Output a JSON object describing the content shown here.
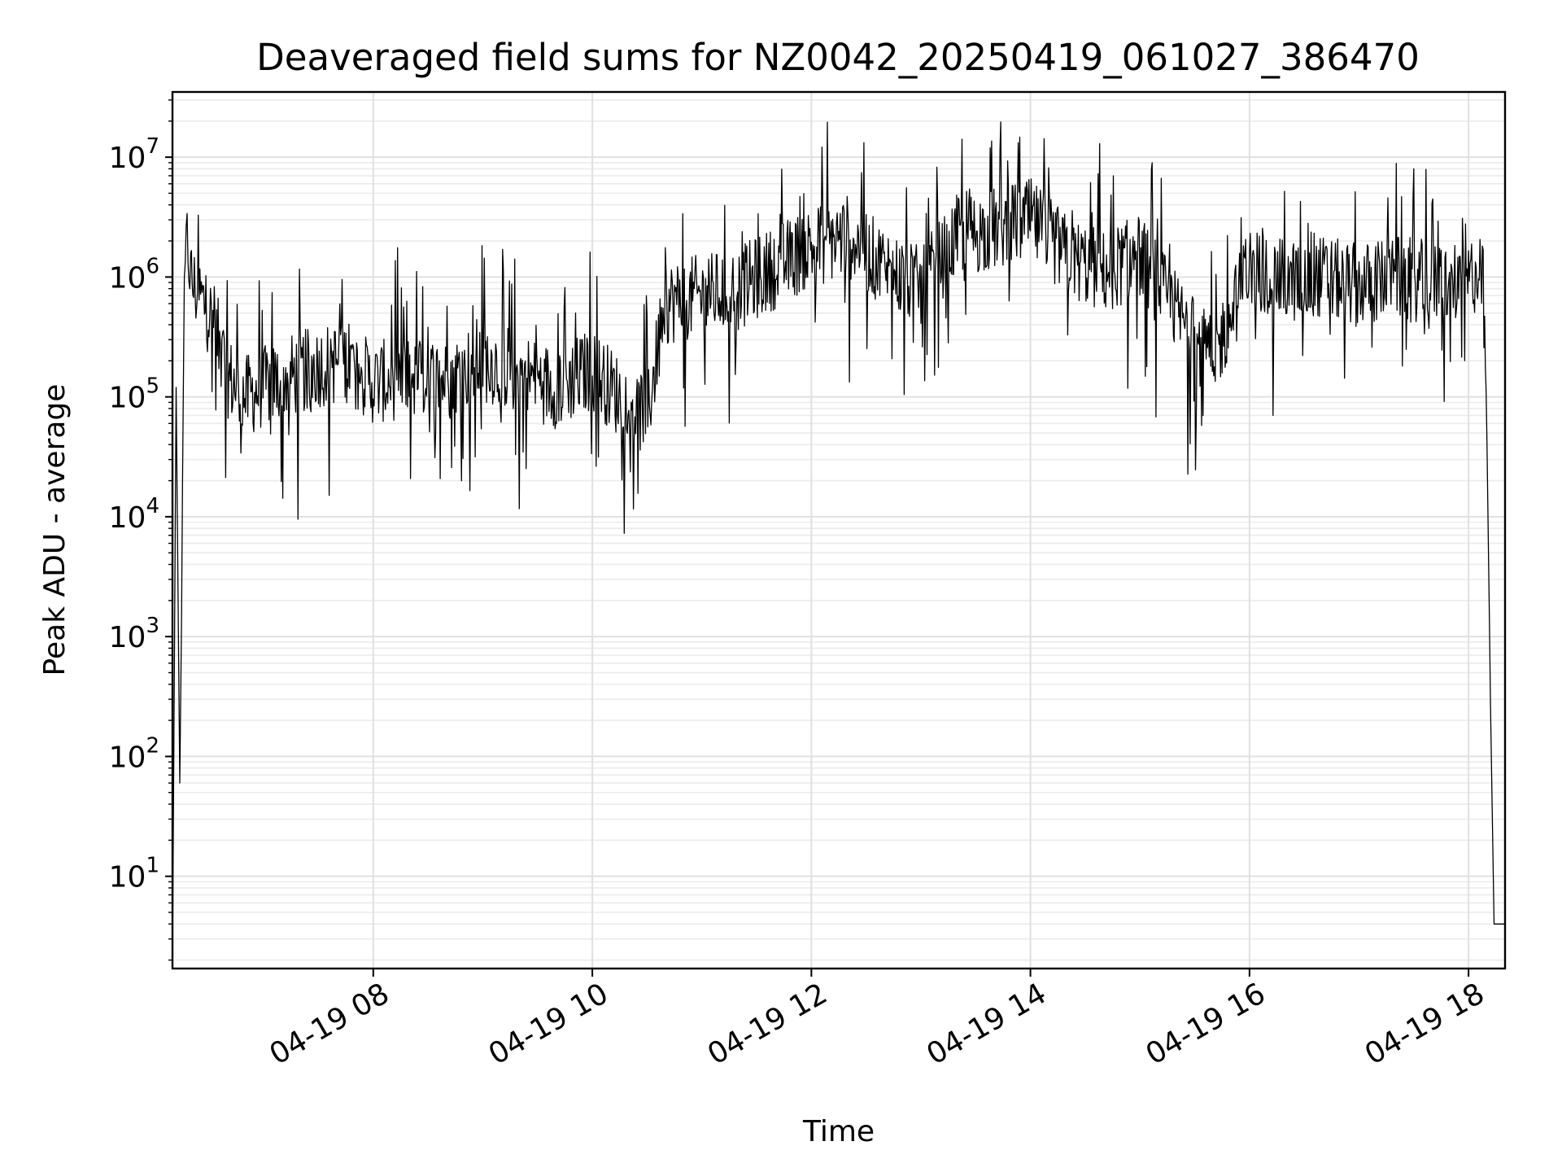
{
  "chart_data": {
    "type": "line",
    "title": "Deaveraged field sums for NZ0042_20250419_061027_386470",
    "xlabel": "Time",
    "ylabel": "Peak ADU - average",
    "yscale": "log",
    "ylim": [
      1.7,
      35000000
    ],
    "xlim": [
      "2025-04-19 06:10",
      "2025-04-19 18:20"
    ],
    "x_ticks": [
      {
        "value": "2025-04-19 08:00",
        "label": "04-19 08"
      },
      {
        "value": "2025-04-19 10:00",
        "label": "04-19 10"
      },
      {
        "value": "2025-04-19 12:00",
        "label": "04-19 12"
      },
      {
        "value": "2025-04-19 14:00",
        "label": "04-19 14"
      },
      {
        "value": "2025-04-19 16:00",
        "label": "04-19 16"
      },
      {
        "value": "2025-04-19 18:00",
        "label": "04-19 18"
      }
    ],
    "y_ticks": [
      {
        "value": 10,
        "base": "10",
        "exp": "1"
      },
      {
        "value": 100,
        "base": "10",
        "exp": "2"
      },
      {
        "value": 1000,
        "base": "10",
        "exp": "3"
      },
      {
        "value": 10000,
        "base": "10",
        "exp": "4"
      },
      {
        "value": 100000,
        "base": "10",
        "exp": "5"
      },
      {
        "value": 1000000,
        "base": "10",
        "exp": "6"
      },
      {
        "value": 10000000,
        "base": "10",
        "exp": "7"
      }
    ],
    "grid": true,
    "series_color": "#000000",
    "series": [
      {
        "x": [
          "2025-04-19 06:10",
          "2025-04-19 06:12",
          "2025-04-19 06:14",
          "2025-04-19 06:15",
          "2025-04-19 06:16",
          "2025-04-19 06:17",
          "2025-04-19 06:18",
          "2025-04-19 06:19",
          "2025-04-19 06:20",
          "2025-04-19 06:22",
          "2025-04-19 06:25",
          "2025-04-19 06:30",
          "2025-04-19 06:35",
          "2025-04-19 06:40",
          "2025-04-19 06:45",
          "2025-04-19 06:50",
          "2025-04-19 06:55",
          "2025-04-19 07:00",
          "2025-04-19 07:15",
          "2025-04-19 07:30",
          "2025-04-19 07:45",
          "2025-04-19 08:00",
          "2025-04-19 08:20",
          "2025-04-19 08:40",
          "2025-04-19 09:00",
          "2025-04-19 09:20",
          "2025-04-19 09:40",
          "2025-04-19 10:00",
          "2025-04-19 10:15",
          "2025-04-19 10:30",
          "2025-04-19 10:40",
          "2025-04-19 11:00",
          "2025-04-19 11:20",
          "2025-04-19 11:40",
          "2025-04-19 12:00",
          "2025-04-19 12:20",
          "2025-04-19 12:40",
          "2025-04-19 13:00",
          "2025-04-19 13:20",
          "2025-04-19 13:40",
          "2025-04-19 14:00",
          "2025-04-19 14:20",
          "2025-04-19 14:40",
          "2025-04-19 15:00",
          "2025-04-19 15:20",
          "2025-04-19 15:40",
          "2025-04-19 16:00",
          "2025-04-19 16:20",
          "2025-04-19 16:40",
          "2025-04-19 17:00",
          "2025-04-19 17:20",
          "2025-04-19 17:40",
          "2025-04-19 18:00",
          "2025-04-19 18:05",
          "2025-04-19 18:08",
          "2025-04-19 18:10",
          "2025-04-19 18:12",
          "2025-04-19 18:14",
          "2025-04-19 18:16",
          "2025-04-19 18:18",
          "2025-04-19 18:20"
        ],
        "y": [
          1.8,
          120000,
          60,
          1500,
          200000,
          1000000,
          2000000,
          1500000,
          1000000,
          800000,
          700000,
          500000,
          300000,
          150000,
          120000,
          100000,
          110000,
          120000,
          150000,
          180000,
          200000,
          130000,
          150000,
          140000,
          200000,
          160000,
          120000,
          170000,
          100000,
          70000,
          600000,
          700000,
          800000,
          1200000,
          1800000,
          2200000,
          1200000,
          800000,
          2200000,
          2500000,
          3000000,
          1500000,
          1100000,
          1500000,
          500000,
          200000,
          1200000,
          900000,
          1000000,
          850000,
          1000000,
          900000,
          900000,
          1200000,
          800000,
          50000,
          300,
          4,
          4,
          4,
          4
        ]
      }
    ]
  }
}
